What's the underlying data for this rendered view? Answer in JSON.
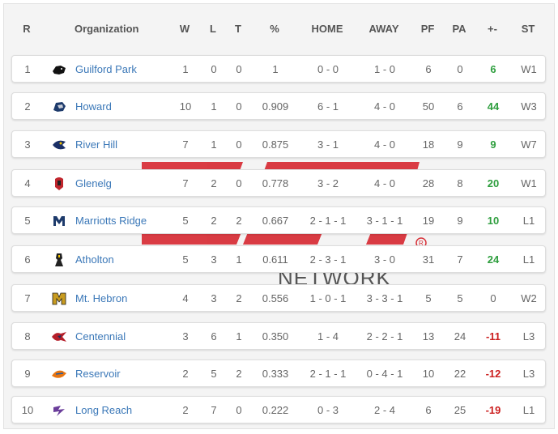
{
  "columns": {
    "rank": "R",
    "org": "Organization",
    "w": "W",
    "l": "L",
    "t": "T",
    "pct": "%",
    "home": "HOME",
    "away": "AWAY",
    "pf": "PF",
    "pa": "PA",
    "diff": "+-",
    "st": "ST"
  },
  "watermark": {
    "text": "NETWORK",
    "color": "#d8323a"
  },
  "rows": [
    {
      "rank": "1",
      "org": "Guilford Park",
      "w": "1",
      "l": "0",
      "t": "0",
      "pct": "1",
      "home": "0 - 0",
      "away": "1 - 0",
      "pf": "6",
      "pa": "0",
      "diff": "6",
      "diff_sign": "pos",
      "st": "W1",
      "logo": "panther-logo"
    },
    {
      "rank": "2",
      "org": "Howard",
      "w": "10",
      "l": "1",
      "t": "0",
      "pct": "0.909",
      "home": "6 - 1",
      "away": "4 - 0",
      "pf": "50",
      "pa": "6",
      "diff": "44",
      "diff_sign": "pos",
      "st": "W3",
      "logo": "lion-logo"
    },
    {
      "rank": "3",
      "org": "River Hill",
      "w": "7",
      "l": "1",
      "t": "0",
      "pct": "0.875",
      "home": "3 - 1",
      "away": "4 - 0",
      "pf": "18",
      "pa": "9",
      "diff": "9",
      "diff_sign": "pos",
      "st": "W7",
      "logo": "hawk-logo"
    },
    {
      "rank": "4",
      "org": "Glenelg",
      "w": "7",
      "l": "2",
      "t": "0",
      "pct": "0.778",
      "home": "3 - 2",
      "away": "4 - 0",
      "pf": "28",
      "pa": "8",
      "diff": "20",
      "diff_sign": "pos",
      "st": "W1",
      "logo": "gladiator-logo"
    },
    {
      "rank": "5",
      "org": "Marriotts Ridge",
      "w": "5",
      "l": "2",
      "t": "2",
      "pct": "0.667",
      "home": "2 - 1 - 1",
      "away": "3 - 1 - 1",
      "pf": "19",
      "pa": "9",
      "diff": "10",
      "diff_sign": "pos",
      "st": "L1",
      "logo": "mustang-logo"
    },
    {
      "rank": "6",
      "org": "Atholton",
      "w": "5",
      "l": "3",
      "t": "1",
      "pct": "0.611",
      "home": "2 - 3 - 1",
      "away": "3 - 0",
      "pf": "31",
      "pa": "7",
      "diff": "24",
      "diff_sign": "pos",
      "st": "L1",
      "logo": "raider-logo"
    },
    {
      "rank": "7",
      "org": "Mt. Hebron",
      "w": "4",
      "l": "3",
      "t": "2",
      "pct": "0.556",
      "home": "1 - 0 - 1",
      "away": "3 - 3 - 1",
      "pf": "5",
      "pa": "5",
      "diff": "0",
      "diff_sign": "zero",
      "st": "W2",
      "logo": "vikings-logo"
    },
    {
      "rank": "8",
      "org": "Centennial",
      "w": "3",
      "l": "6",
      "t": "1",
      "pct": "0.350",
      "home": "1 - 4",
      "away": "2 - 2 - 1",
      "pf": "13",
      "pa": "24",
      "diff": "-11",
      "diff_sign": "neg",
      "st": "L3",
      "logo": "eagle-logo"
    },
    {
      "rank": "9",
      "org": "Reservoir",
      "w": "2",
      "l": "5",
      "t": "2",
      "pct": "0.333",
      "home": "2 - 1 - 1",
      "away": "0 - 4 - 1",
      "pf": "10",
      "pa": "22",
      "diff": "-12",
      "diff_sign": "neg",
      "st": "L3",
      "logo": "gator-logo"
    },
    {
      "rank": "10",
      "org": "Long Reach",
      "w": "2",
      "l": "7",
      "t": "0",
      "pct": "0.222",
      "home": "0 - 3",
      "away": "2 - 4",
      "pf": "6",
      "pa": "25",
      "diff": "-19",
      "diff_sign": "neg",
      "st": "L1",
      "logo": "lightning-logo"
    }
  ]
}
